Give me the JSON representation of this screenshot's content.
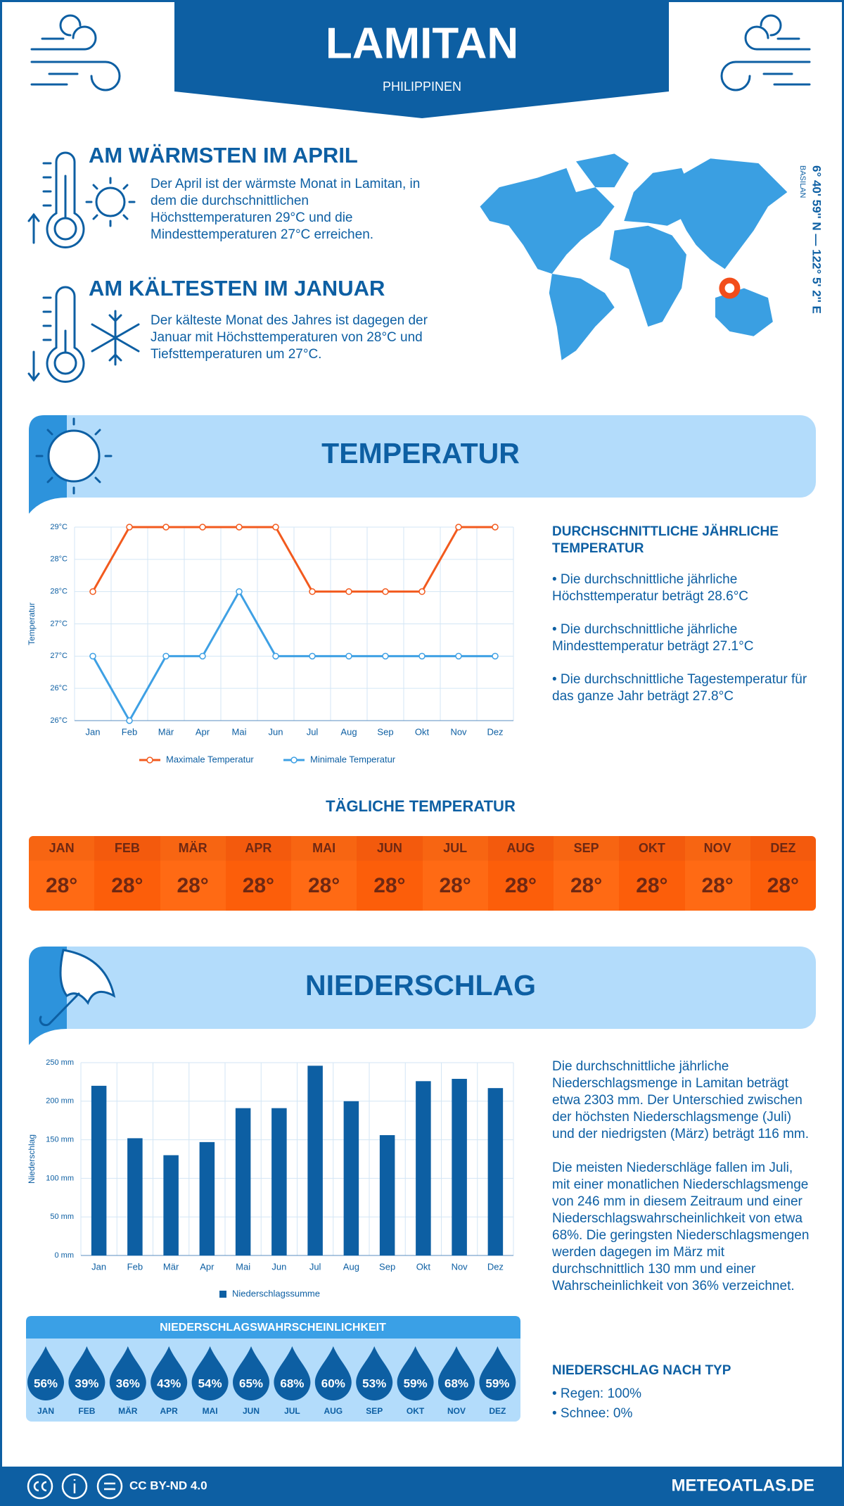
{
  "header": {
    "title": "LAMITAN",
    "country": "PHILIPPINEN"
  },
  "location": {
    "region": "BASILAN",
    "coordinates": "6° 40' 59'' N — 122° 5' 2'' E"
  },
  "warmest": {
    "title": "AM WÄRMSTEN IM APRIL",
    "text": "Der April ist der wärmste Monat in Lamitan, in dem die durchschnittlichen Höchsttemperaturen 29°C und die Mindesttemperaturen 27°C erreichen."
  },
  "coldest": {
    "title": "AM KÄLTESTEN IM JANUAR",
    "text": "Der kälteste Monat des Jahres ist dagegen der Januar mit Höchsttemperaturen von 28°C und Tiefsttemperaturen um 27°C."
  },
  "temperature_section": {
    "title": "TEMPERATUR",
    "summary_title": "DURCHSCHNITTLICHE JÄHRLICHE TEMPERATUR",
    "bullets": [
      "• Die durchschnittliche jährliche Höchsttemperatur beträgt 28.6°C",
      "• Die durchschnittliche jährliche Mindesttemperatur beträgt 27.1°C",
      "• Die durchschnittliche Tagestemperatur für das ganze Jahr beträgt 27.8°C"
    ]
  },
  "chart_data": [
    {
      "type": "line",
      "y_label": "Temperatur",
      "categories": [
        "Jan",
        "Feb",
        "Mär",
        "Apr",
        "Mai",
        "Jun",
        "Jul",
        "Aug",
        "Sep",
        "Okt",
        "Nov",
        "Dez"
      ],
      "series": [
        {
          "name": "Maximale Temperatur",
          "color": "#f25a1e",
          "values": [
            28,
            29,
            29,
            29,
            29,
            29,
            28,
            28,
            28,
            28,
            29,
            29
          ]
        },
        {
          "name": "Minimale Temperatur",
          "color": "#3ea0e4",
          "values": [
            27,
            26,
            27,
            27,
            28,
            27,
            27,
            27,
            27,
            27,
            27,
            27
          ]
        }
      ],
      "ylim": [
        26,
        29
      ],
      "yticks": [
        {
          "value": 26,
          "label": "26°C"
        },
        {
          "value": 26.5,
          "label": "26°C"
        },
        {
          "value": 27,
          "label": "27°C"
        },
        {
          "value": 27.5,
          "label": "27°C"
        },
        {
          "value": 28,
          "label": "28°C"
        },
        {
          "value": 28.5,
          "label": "28°C"
        },
        {
          "value": 29,
          "label": "29°C"
        }
      ],
      "grid": true
    },
    {
      "type": "bar",
      "y_label": "Niederschlag",
      "categories": [
        "Jan",
        "Feb",
        "Mär",
        "Apr",
        "Mai",
        "Jun",
        "Jul",
        "Aug",
        "Sep",
        "Okt",
        "Nov",
        "Dez"
      ],
      "series": [
        {
          "name": "Niederschlagssumme",
          "color": "#0d5fa3",
          "values": [
            220,
            152,
            130,
            147,
            191,
            191,
            246,
            200,
            156,
            226,
            229,
            217
          ]
        }
      ],
      "ylim": [
        0,
        250
      ],
      "yticks": [
        {
          "value": 0,
          "label": "0 mm"
        },
        {
          "value": 50,
          "label": "50 mm"
        },
        {
          "value": 100,
          "label": "100 mm"
        },
        {
          "value": 150,
          "label": "150 mm"
        },
        {
          "value": 200,
          "label": "200 mm"
        },
        {
          "value": 250,
          "label": "250 mm"
        }
      ],
      "grid": true
    }
  ],
  "daily": {
    "title": "TÄGLICHE TEMPERATUR",
    "months": [
      "JAN",
      "FEB",
      "MÄR",
      "APR",
      "MAI",
      "JUN",
      "JUL",
      "AUG",
      "SEP",
      "OKT",
      "NOV",
      "DEZ"
    ],
    "values": [
      "28°",
      "28°",
      "28°",
      "28°",
      "28°",
      "28°",
      "28°",
      "28°",
      "28°",
      "28°",
      "28°",
      "28°"
    ]
  },
  "precipitation_section": {
    "title": "NIEDERSCHLAG",
    "paragraphs": [
      "Die durchschnittliche jährliche Niederschlagsmenge in Lamitan beträgt etwa 2303 mm. Der Unterschied zwischen der höchsten Niederschlagsmenge (Juli) und der niedrigsten (März) beträgt 116 mm.",
      "Die meisten Niederschläge fallen im Juli, mit einer monatlichen Niederschlagsmenge von 246 mm in diesem Zeitraum und einer Niederschlagswahrscheinlichkeit von etwa 68%. Die geringsten Niederschlagsmengen werden dagegen im März mit durchschnittlich 130 mm und einer Wahrscheinlichkeit von 36% verzeichnet."
    ],
    "type_title": "NIEDERSCHLAG NACH TYP",
    "types": [
      "• Regen: 100%",
      "• Schnee: 0%"
    ]
  },
  "probability": {
    "title": "NIEDERSCHLAGSWAHRSCHEINLICHKEIT",
    "months": [
      "JAN",
      "FEB",
      "MÄR",
      "APR",
      "MAI",
      "JUN",
      "JUL",
      "AUG",
      "SEP",
      "OKT",
      "NOV",
      "DEZ"
    ],
    "values": [
      56,
      39,
      36,
      43,
      54,
      65,
      68,
      60,
      53,
      59,
      68,
      59
    ],
    "value_labels": [
      "56%",
      "39%",
      "36%",
      "43%",
      "54%",
      "65%",
      "68%",
      "60%",
      "53%",
      "59%",
      "68%",
      "59%"
    ]
  },
  "footer": {
    "license": "CC BY-ND 4.0",
    "site": "METEOATLAS.DE"
  }
}
